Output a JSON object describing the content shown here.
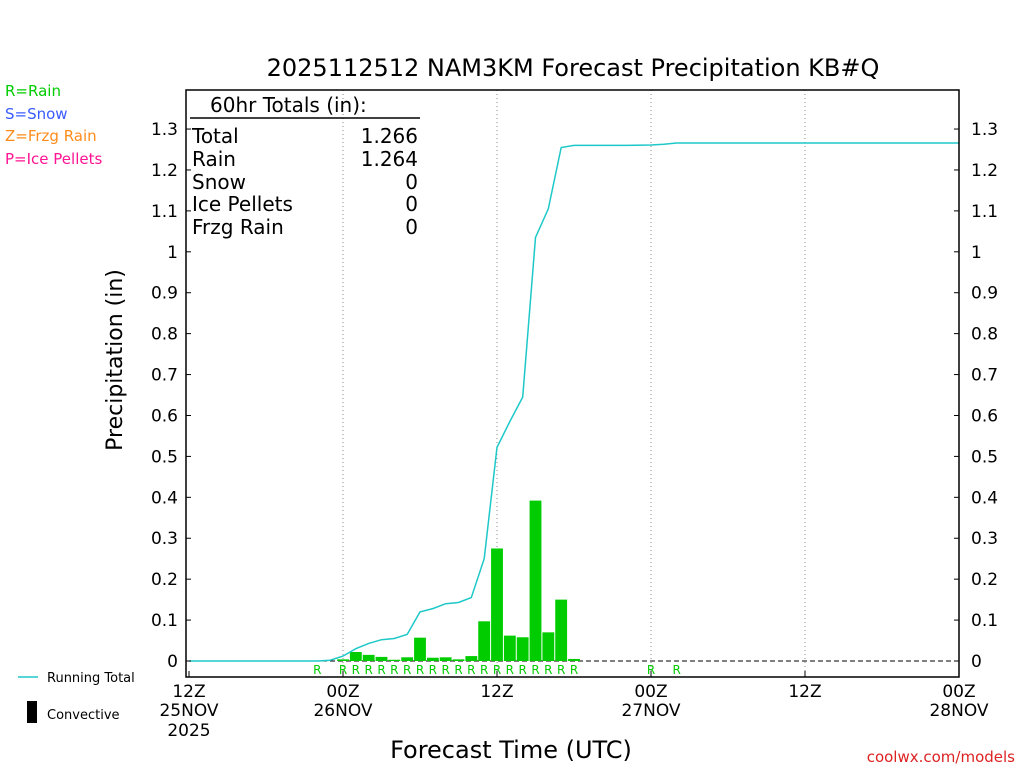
{
  "chart_data": {
    "type": "bar",
    "title": "2025112512 NAM3KM Forecast Precipitation KB#Q",
    "ylabel": "Precipitation (in)",
    "xlabel": "Forecast Time (UTC)",
    "ylim": [
      0,
      1.37
    ],
    "xlim_hours": [
      0,
      60
    ],
    "yticks": [
      "0",
      "0.1",
      "0.2",
      "0.3",
      "0.4",
      "0.5",
      "0.6",
      "0.7",
      "0.8",
      "0.9",
      "1",
      "1.1",
      "1.2",
      "1.3"
    ],
    "xticks": [
      {
        "label": "12Z",
        "sub": "25NOV",
        "sub2": "2025",
        "hour": 0
      },
      {
        "label": "00Z",
        "sub": "26NOV",
        "sub2": "",
        "hour": 12
      },
      {
        "label": "12Z",
        "sub": "",
        "sub2": "",
        "hour": 24
      },
      {
        "label": "00Z",
        "sub": "27NOV",
        "sub2": "",
        "hour": 36
      },
      {
        "label": "12Z",
        "sub": "",
        "sub2": "",
        "hour": 48
      },
      {
        "label": "00Z",
        "sub": "28NOV",
        "sub2": "",
        "hour": 60
      }
    ],
    "grid_hours": [
      12,
      24,
      36,
      48
    ],
    "legend_top": [
      {
        "text": "R=Rain",
        "color": "#00cc00"
      },
      {
        "text": "S=Snow",
        "color": "#3a5cff"
      },
      {
        "text": "Z=Frzg Rain",
        "color": "#ff8c1a"
      },
      {
        "text": "P=Ice Pellets",
        "color": "#ff1493"
      }
    ],
    "legend_bottom": {
      "running_total": "Running Total",
      "convective": "Convective"
    },
    "totals": {
      "header": "60hr Totals (in):",
      "rows": [
        {
          "label": "Total",
          "value": "1.266"
        },
        {
          "label": "Rain",
          "value": "1.264"
        },
        {
          "label": "Snow",
          "value": "0"
        },
        {
          "label": "Ice Pellets",
          "value": "0"
        },
        {
          "label": "Frzg Rain",
          "value": "0"
        }
      ]
    },
    "series": [
      {
        "name": "Running Total",
        "color": "#1ec8c8",
        "points": [
          [
            0,
            0
          ],
          [
            10,
            0
          ],
          [
            11,
            0.002
          ],
          [
            12,
            0.012
          ],
          [
            13,
            0.03
          ],
          [
            14,
            0.043
          ],
          [
            15,
            0.052
          ],
          [
            16,
            0.055
          ],
          [
            17,
            0.065
          ],
          [
            18,
            0.12
          ],
          [
            19,
            0.128
          ],
          [
            20,
            0.14
          ],
          [
            21,
            0.143
          ],
          [
            22,
            0.155
          ],
          [
            23,
            0.25
          ],
          [
            24,
            0.522
          ],
          [
            25,
            0.585
          ],
          [
            26,
            0.645
          ],
          [
            27,
            1.035
          ],
          [
            28,
            1.105
          ],
          [
            29,
            1.255
          ],
          [
            30,
            1.26
          ],
          [
            34,
            1.26
          ],
          [
            36,
            1.261
          ],
          [
            37,
            1.263
          ],
          [
            38,
            1.266
          ],
          [
            60,
            1.266
          ]
        ]
      },
      {
        "name": "Rain",
        "color": "#00cc00",
        "bars": [
          [
            12,
            0.004
          ],
          [
            13,
            0.022
          ],
          [
            14,
            0.015
          ],
          [
            15,
            0.01
          ],
          [
            16,
            0.003
          ],
          [
            17,
            0.009
          ],
          [
            18,
            0.057
          ],
          [
            19,
            0.008
          ],
          [
            20,
            0.009
          ],
          [
            21,
            0.004
          ],
          [
            22,
            0.012
          ],
          [
            23,
            0.097
          ],
          [
            24,
            0.275
          ],
          [
            25,
            0.062
          ],
          [
            26,
            0.058
          ],
          [
            27,
            0.392
          ],
          [
            28,
            0.07
          ],
          [
            29,
            0.15
          ],
          [
            30,
            0.005
          ]
        ]
      }
    ],
    "ptype_markers": {
      "color": "#00cc00",
      "items": [
        [
          10,
          "R"
        ],
        [
          12,
          "R"
        ],
        [
          13,
          "R"
        ],
        [
          14,
          "R"
        ],
        [
          15,
          "R"
        ],
        [
          16,
          "R"
        ],
        [
          17,
          "R"
        ],
        [
          18,
          "R"
        ],
        [
          19,
          "R"
        ],
        [
          20,
          "R"
        ],
        [
          21,
          "R"
        ],
        [
          22,
          "R"
        ],
        [
          23,
          "R"
        ],
        [
          24,
          "R"
        ],
        [
          25,
          "R"
        ],
        [
          26,
          "R"
        ],
        [
          27,
          "R"
        ],
        [
          28,
          "R"
        ],
        [
          29,
          "R"
        ],
        [
          30,
          "R"
        ],
        [
          36,
          "R"
        ],
        [
          38,
          "R"
        ]
      ]
    },
    "credit": "coolwx.com/models",
    "colors": {
      "credit": "#dd2222",
      "frame": "#000000",
      "grid": "#888888"
    }
  }
}
